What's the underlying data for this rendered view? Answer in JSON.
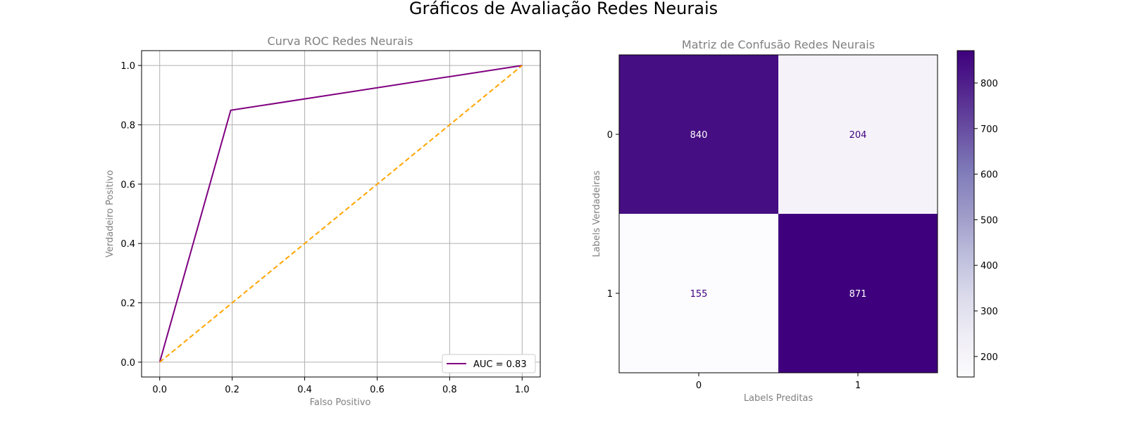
{
  "figure": {
    "title": "Gráficos de Avaliação Redes Neurais"
  },
  "chart_data": [
    {
      "type": "line",
      "title": "Curva ROC Redes Neurais",
      "xlabel": "Falso Positivo",
      "ylabel": "Verdadeiro Positivo",
      "xlim": [
        -0.05,
        1.05
      ],
      "ylim": [
        -0.05,
        1.05
      ],
      "xticks": [
        "0.0",
        "0.2",
        "0.4",
        "0.6",
        "0.8",
        "1.0"
      ],
      "yticks": [
        "0.0",
        "0.2",
        "0.4",
        "0.6",
        "0.8",
        "1.0"
      ],
      "grid": true,
      "legend_position": "lower-right",
      "series": [
        {
          "name": "AUC = 0.83",
          "color": "#800080",
          "style": "solid",
          "x": [
            0.0,
            0.196,
            1.0
          ],
          "y": [
            0.0,
            0.849,
            1.0
          ]
        },
        {
          "color": "#FFA500",
          "style": "dashed",
          "x": [
            0.0,
            1.0
          ],
          "y": [
            0.0,
            1.0
          ]
        }
      ]
    },
    {
      "type": "heatmap",
      "title": "Matriz de Confusão Redes Neurais",
      "xlabel": "Labels Preditas",
      "ylabel": "Labels Verdadeiras",
      "x_categories": [
        "0",
        "1"
      ],
      "y_categories": [
        "0",
        "1"
      ],
      "values": [
        [
          840,
          204
        ],
        [
          155,
          871
        ]
      ],
      "colormap": "Purples",
      "colorbar": {
        "min": 155,
        "max": 871,
        "ticks": [
          "200",
          "300",
          "400",
          "500",
          "600",
          "700",
          "800"
        ]
      }
    }
  ]
}
